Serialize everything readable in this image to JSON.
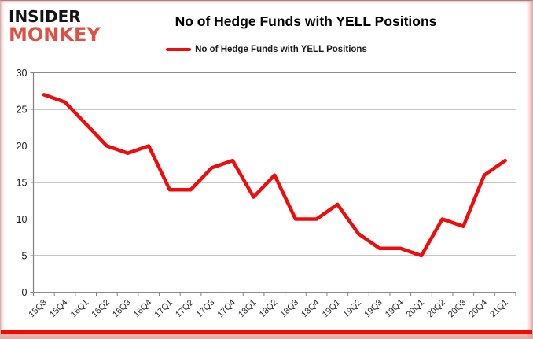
{
  "brand": {
    "line1": "INSIDER",
    "line2": "MONKEY"
  },
  "header": {
    "title": "No of Hedge Funds with YELL Positions"
  },
  "legend": {
    "label": "No of Hedge Funds with YELL Positions"
  },
  "colors": {
    "series_line": "#ee0c0c",
    "brand_accent": "#de5246",
    "gridline": "#8c8c8c",
    "axis": "#808080",
    "axis_text": "#1a1a1a",
    "bottom_bar": "#f10c00"
  },
  "chart_data": {
    "type": "line",
    "title": "No of Hedge Funds with YELL Positions",
    "categories": [
      "15Q3",
      "15Q4",
      "16Q1",
      "16Q2",
      "16Q3",
      "16Q4",
      "17Q1",
      "17Q2",
      "17Q3",
      "17Q4",
      "18Q1",
      "18Q2",
      "18Q3",
      "18Q4",
      "19Q1",
      "19Q2",
      "19Q3",
      "19Q4",
      "20Q1",
      "20Q2",
      "20Q3",
      "20Q4",
      "21Q1"
    ],
    "series": [
      {
        "name": "No of Hedge Funds with YELL Positions",
        "color": "#ee0c0c",
        "values": [
          27,
          26,
          23,
          20,
          19,
          20,
          14,
          14,
          17,
          18,
          13,
          16,
          10,
          10,
          12,
          8,
          6,
          6,
          5,
          10,
          9,
          16,
          18
        ]
      }
    ],
    "xlabel": "",
    "ylabel": "",
    "ylim": [
      0,
      30
    ],
    "yticks": [
      0,
      5,
      10,
      15,
      20,
      25,
      30
    ],
    "grid": "horizontal",
    "legend_position": "top"
  }
}
